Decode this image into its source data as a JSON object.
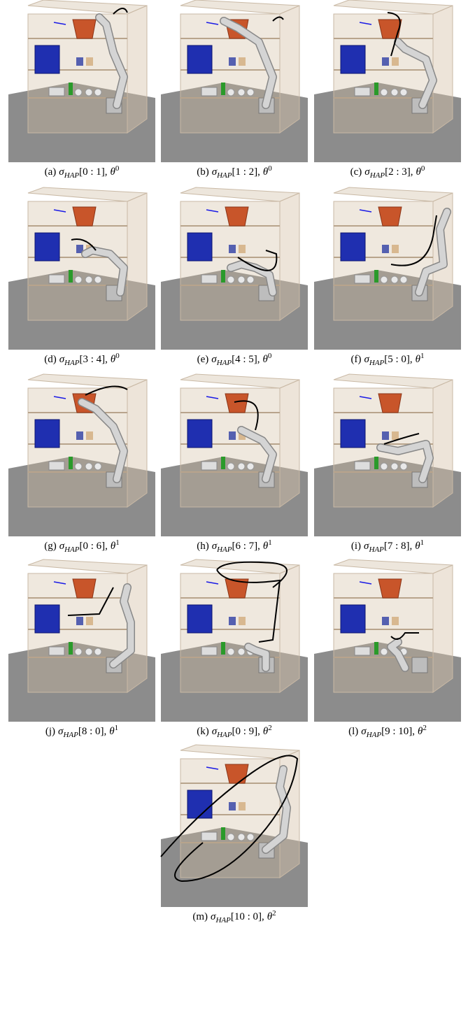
{
  "symbols": {
    "sigma": "σ",
    "sub": "HAP",
    "separator": ",",
    "theta": "θ"
  },
  "panels": [
    {
      "label": "(a)",
      "range": "[0 : 1]",
      "exponent": "0"
    },
    {
      "label": "(b)",
      "range": "[1 : 2]",
      "exponent": "0"
    },
    {
      "label": "(c)",
      "range": "[2 : 3]",
      "exponent": "0"
    },
    {
      "label": "(d)",
      "range": "[3 : 4]",
      "exponent": "0"
    },
    {
      "label": "(e)",
      "range": "[4 : 5]",
      "exponent": "0"
    },
    {
      "label": "(f)",
      "range": "[5 : 0]",
      "exponent": "1"
    },
    {
      "label": "(g)",
      "range": "[0 : 6]",
      "exponent": "1"
    },
    {
      "label": "(h)",
      "range": "[6 : 7]",
      "exponent": "1"
    },
    {
      "label": "(i)",
      "range": "[7 : 8]",
      "exponent": "1"
    },
    {
      "label": "(j)",
      "range": "[8 : 0]",
      "exponent": "1"
    },
    {
      "label": "(k)",
      "range": "[0 : 9]",
      "exponent": "2"
    },
    {
      "label": "(l)",
      "range": "[9 : 10]",
      "exponent": "2"
    },
    {
      "label": "(m)",
      "range": "[10 : 0]",
      "exponent": "2"
    }
  ]
}
